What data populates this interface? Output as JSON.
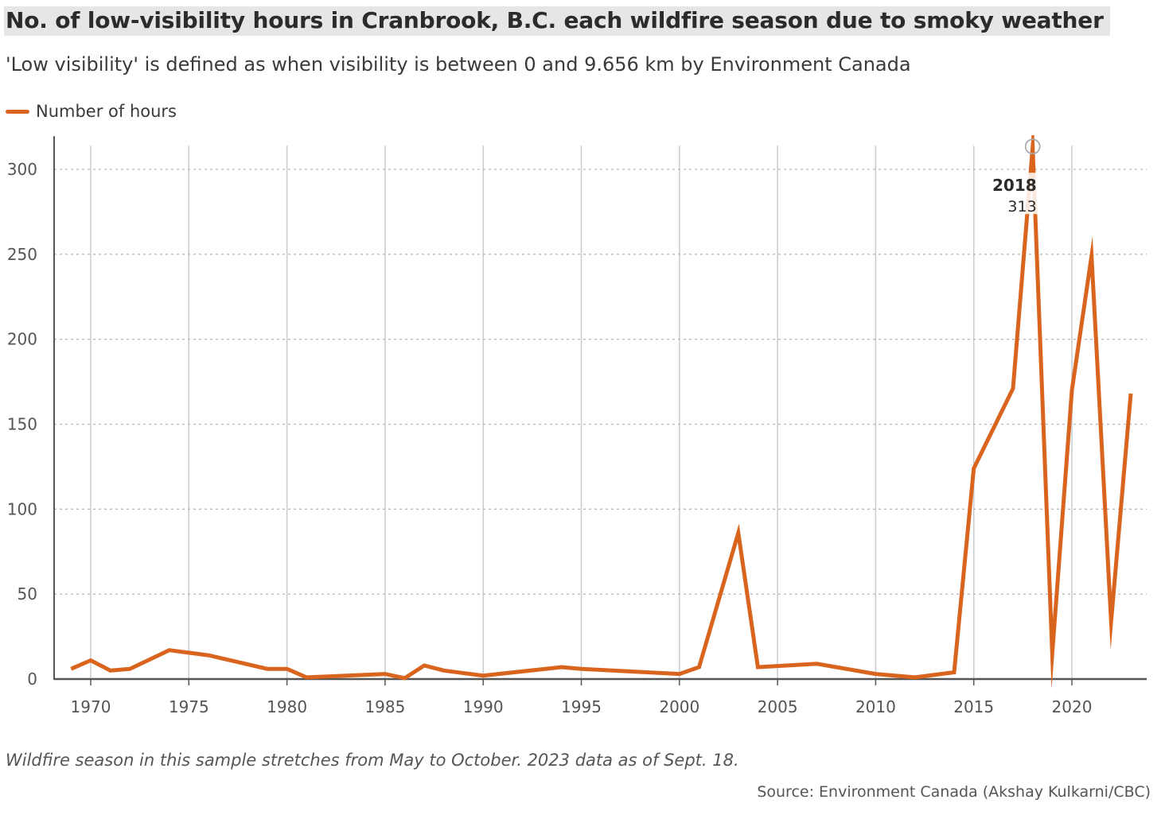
{
  "title": "No. of low-visibility hours in Cranbrook, B.C. each wildfire season due to smoky weather",
  "subtitle": "'Low visibility' is defined as when visibility is between 0 and 9.656 km by Environment Canada",
  "legend": {
    "label": "Number of hours",
    "color": "#d9641e"
  },
  "note": "Wildfire season in this sample stretches from May to October. 2023 data as of Sept. 18.",
  "source": "Source: Environment Canada (Akshay Kulkarni/CBC)",
  "chart_data": {
    "type": "line",
    "title": "No. of low-visibility hours in Cranbrook, B.C. each wildfire season due to smoky weather",
    "xlabel": "",
    "ylabel": "",
    "xlim": [
      1968.1,
      2024.8
    ],
    "ylim": [
      0,
      313
    ],
    "x_ticks": [
      1970,
      1975,
      1980,
      1985,
      1990,
      1995,
      2000,
      2005,
      2010,
      2015,
      2020
    ],
    "y_ticks": [
      0,
      50,
      100,
      150,
      200,
      250,
      300
    ],
    "grid": {
      "vertical": "solid",
      "horizontal": "dotted"
    },
    "series": [
      {
        "name": "Number of hours",
        "color": "#d9641e",
        "x": [
          1969,
          1970,
          1971,
          1972,
          1974,
          1976,
          1979,
          1980,
          1981,
          1985,
          1986,
          1987,
          1988,
          1990,
          1994,
          1995,
          2000,
          2001,
          2003,
          2004,
          2007,
          2010,
          2012,
          2014,
          2015,
          2017,
          2018,
          2019,
          2020,
          2021,
          2022,
          2023
        ],
        "y": [
          6,
          11,
          5,
          6,
          17,
          14,
          6,
          6,
          1,
          3,
          0.5,
          8,
          5,
          2,
          7,
          6,
          3,
          7,
          86,
          7,
          9,
          3,
          1,
          4,
          124,
          171,
          313,
          15,
          170,
          249,
          34,
          168
        ]
      }
    ],
    "annotation": {
      "year": "2018",
      "value": "313",
      "x": 2018,
      "y": 313
    }
  }
}
